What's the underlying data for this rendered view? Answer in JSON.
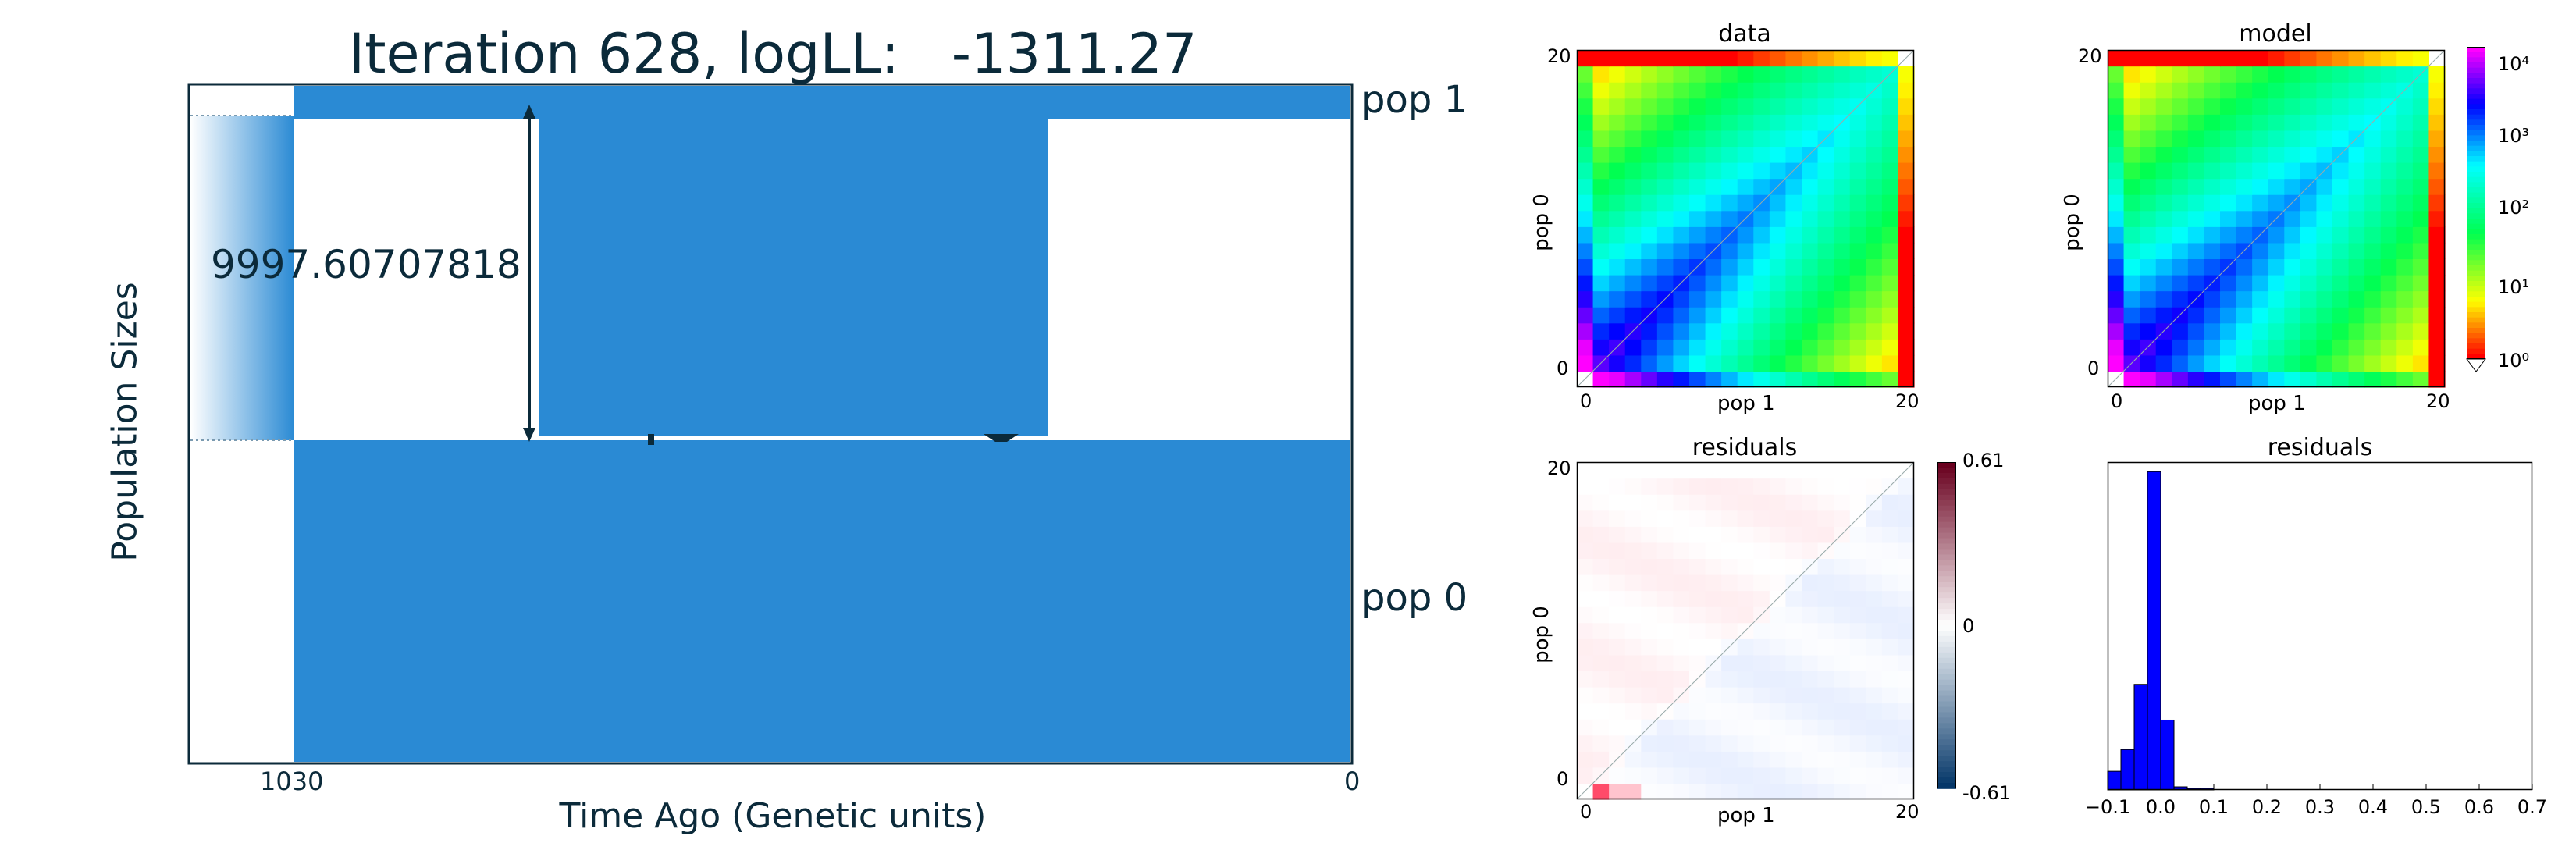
{
  "chart_data": [
    {
      "type": "diagram",
      "title": "Iteration 628, logLL:   -1311.27",
      "xlabel": "Time Ago (Genetic units)",
      "ylabel": "Population Sizes",
      "x_ticks": [
        "1030",
        "0"
      ],
      "populations": [
        {
          "name": "pop 1",
          "color": "#2a8ad4"
        },
        {
          "name": "pop 0",
          "color": "#2a8ad4"
        }
      ],
      "size_annotation": "9997.60707818",
      "split_time": 1030
    },
    {
      "type": "heatmap",
      "title": "data",
      "xlabel": "pop 1",
      "ylabel": "pop 0",
      "x_ticks": [
        "0",
        "20"
      ],
      "y_ticks": [
        "0",
        "20"
      ],
      "grid_size": 21,
      "log_scale": true
    },
    {
      "type": "heatmap",
      "title": "model",
      "xlabel": "pop 1",
      "ylabel": "pop 0",
      "x_ticks": [
        "0",
        "20"
      ],
      "y_ticks": [
        "0",
        "20"
      ],
      "grid_size": 21,
      "log_scale": true,
      "colorbar_ticks": [
        "10⁰",
        "10¹",
        "10²",
        "10³",
        "10⁴"
      ]
    },
    {
      "type": "heatmap",
      "title": "residuals",
      "xlabel": "pop 1",
      "ylabel": "pop 0",
      "x_ticks": [
        "0",
        "20"
      ],
      "y_ticks": [
        "0",
        "20"
      ],
      "grid_size": 21,
      "colorbar_ticks": [
        "0.61",
        "0",
        "-0.61"
      ],
      "vmin": -0.61,
      "vmax": 0.61
    },
    {
      "type": "bar",
      "title": "residuals",
      "x_ticks": [
        "−0.1",
        "0.0",
        "0.1",
        "0.2",
        "0.3",
        "0.4",
        "0.5",
        "0.6",
        "0.7"
      ],
      "xlim": [
        -0.1,
        0.7
      ],
      "bin_width": 0.025,
      "bins": [
        {
          "x": -0.1,
          "count": 12
        },
        {
          "x": -0.075,
          "count": 26
        },
        {
          "x": -0.05,
          "count": 68
        },
        {
          "x": -0.025,
          "count": 205
        },
        {
          "x": 0.0,
          "count": 45
        },
        {
          "x": 0.025,
          "count": 2
        },
        {
          "x": 0.05,
          "count": 1
        },
        {
          "x": 0.075,
          "count": 1
        }
      ],
      "color": "#0000ff"
    }
  ]
}
